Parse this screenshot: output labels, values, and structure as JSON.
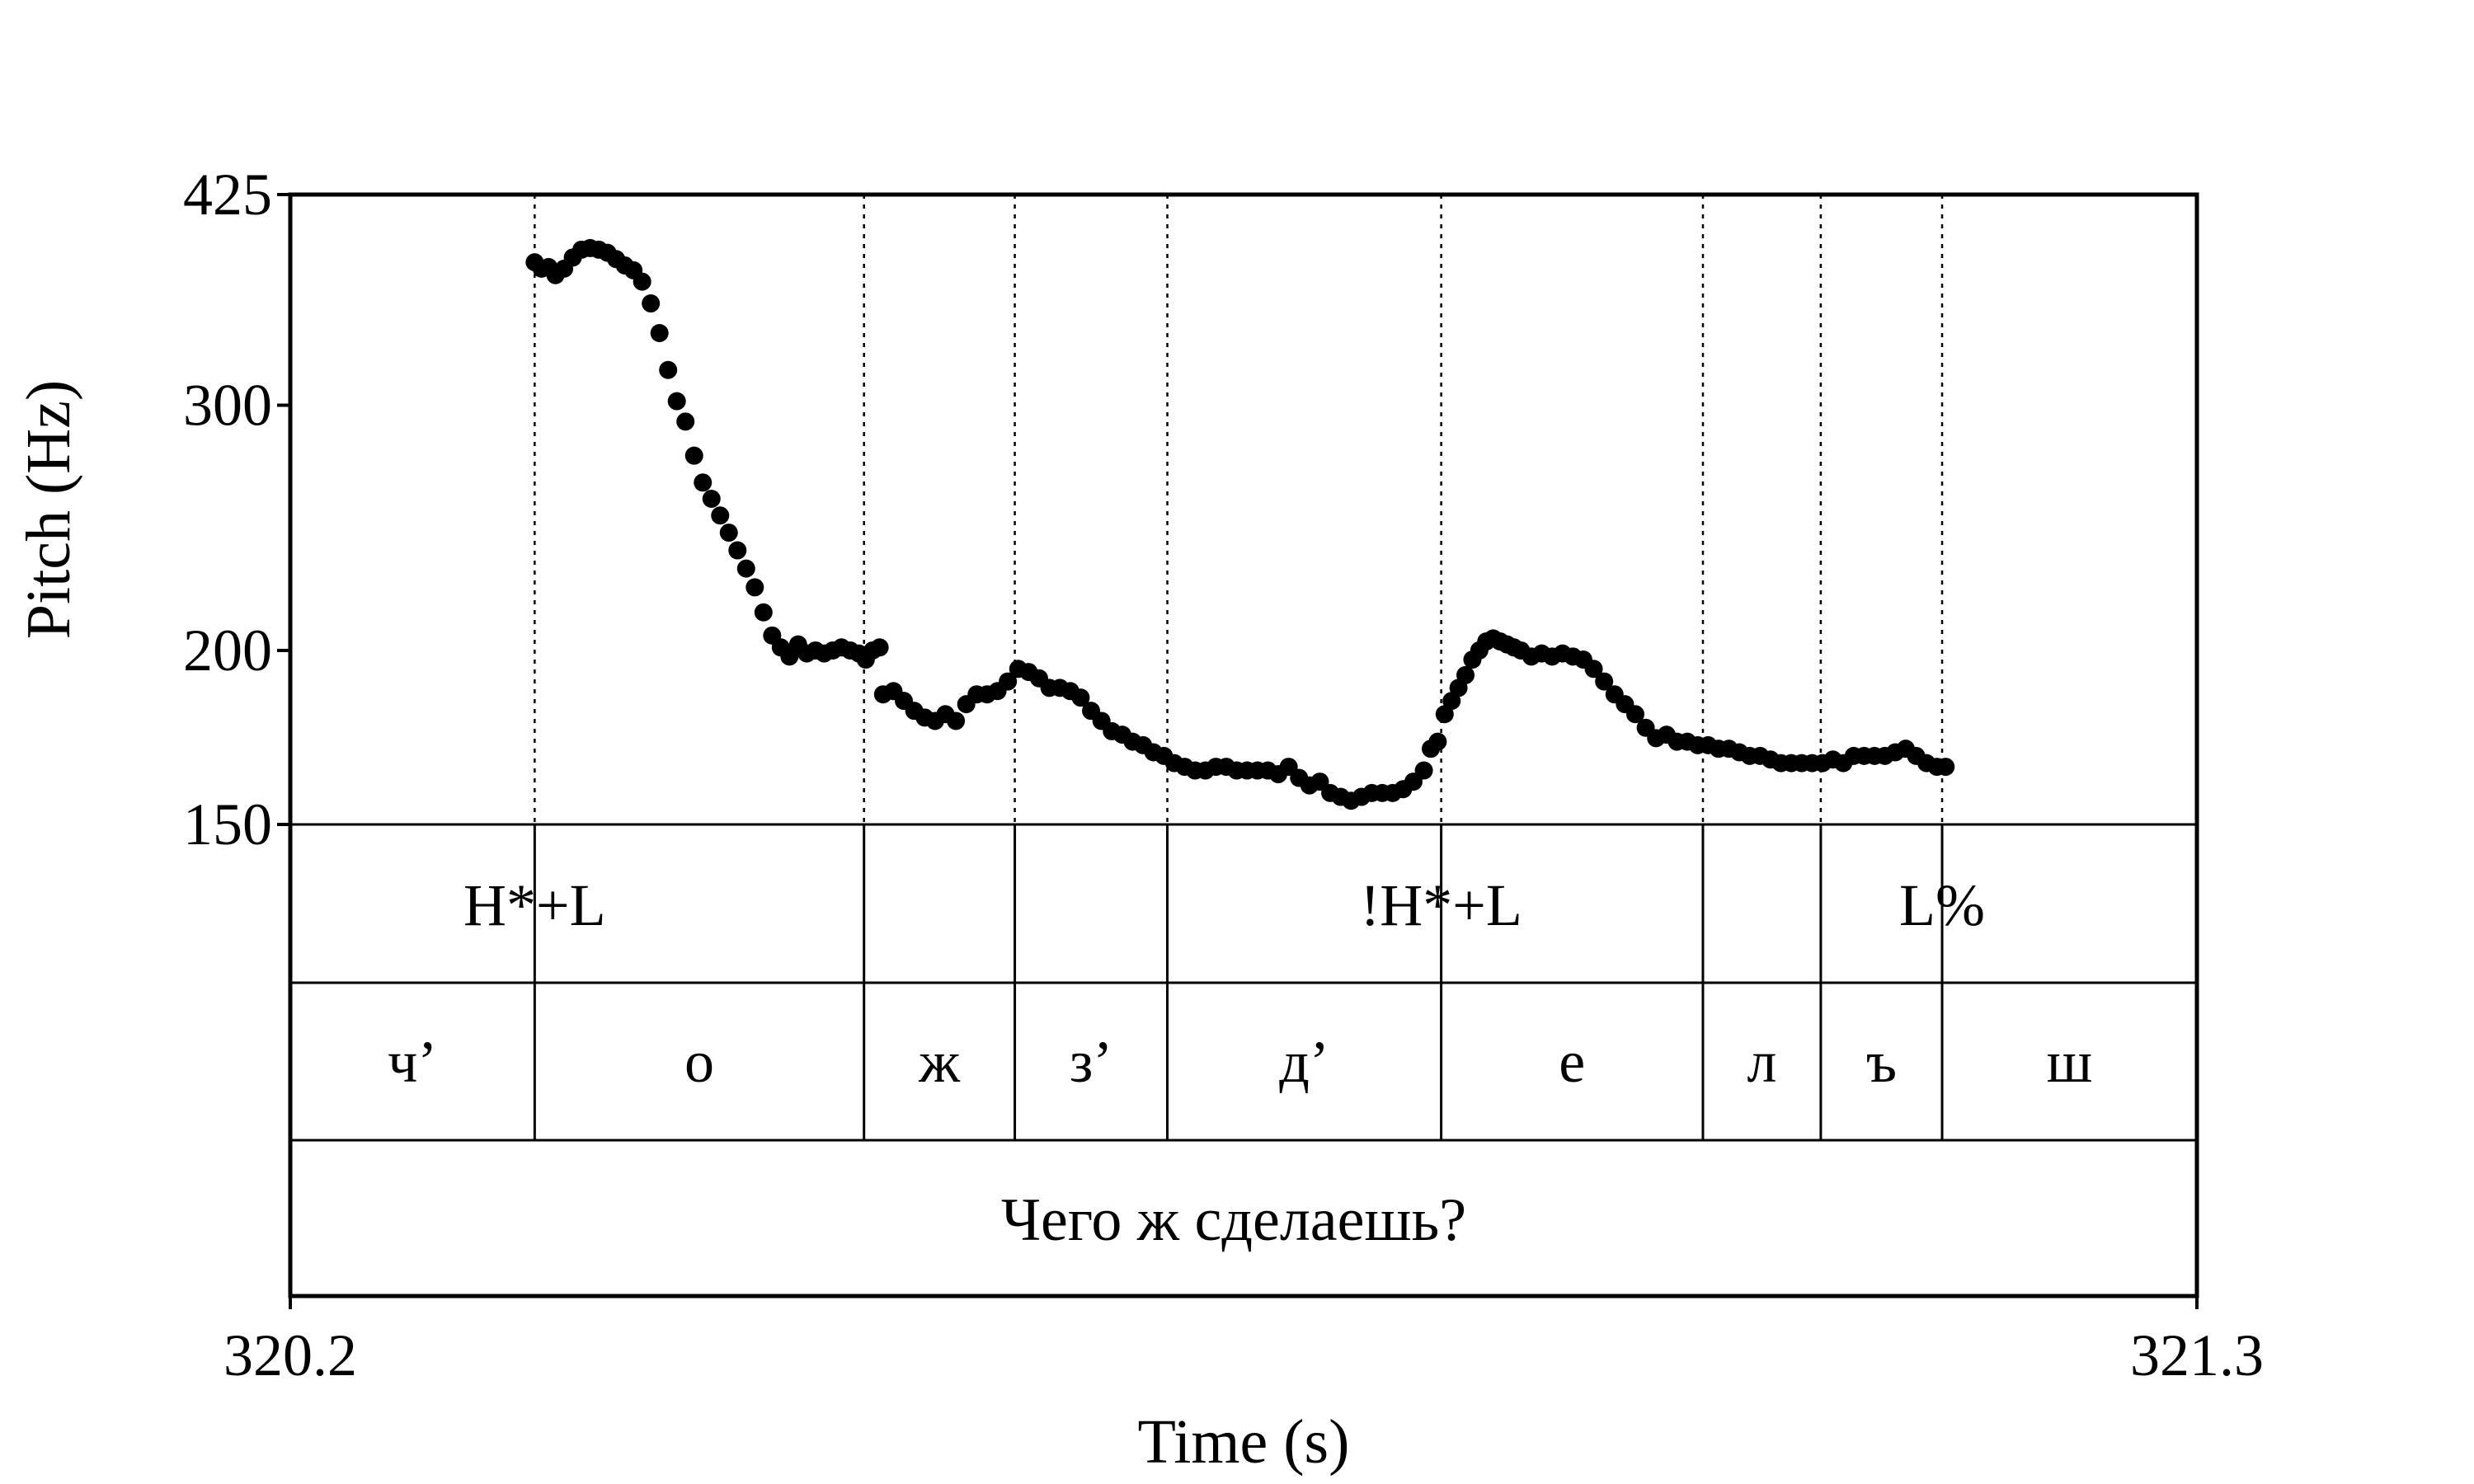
{
  "chart_data": {
    "type": "scatter",
    "title": "",
    "xlabel": "Time (s)",
    "ylabel": "Pitch (Hz)",
    "xlim": [
      320.2,
      321.3
    ],
    "ylim": [
      150,
      425
    ],
    "y_scale": "log",
    "x_ticks": [
      "320.2",
      "321.3"
    ],
    "y_ticks": [
      {
        "value": 425,
        "label": "425"
      },
      {
        "value": 300,
        "label": "300"
      },
      {
        "value": 200,
        "label": "200"
      },
      {
        "value": 150,
        "label": "150"
      }
    ],
    "grid": false,
    "boundaries": [
      320.341,
      320.531,
      320.618,
      320.706,
      320.864,
      321.015,
      321.083,
      321.153
    ],
    "tones": [
      {
        "time": 320.341,
        "label": "H*+L"
      },
      {
        "time": 320.864,
        "label": "!H*+L"
      },
      {
        "time": 321.153,
        "label": "L%"
      }
    ],
    "segments": [
      {
        "start": 320.2,
        "end": 320.341,
        "label": "ч’"
      },
      {
        "start": 320.341,
        "end": 320.531,
        "label": "о"
      },
      {
        "start": 320.531,
        "end": 320.618,
        "label": "ж"
      },
      {
        "start": 320.618,
        "end": 320.706,
        "label": "з’"
      },
      {
        "start": 320.706,
        "end": 320.864,
        "label": "д’"
      },
      {
        "start": 320.864,
        "end": 321.015,
        "label": "е"
      },
      {
        "start": 321.015,
        "end": 321.083,
        "label": "л"
      },
      {
        "start": 321.083,
        "end": 321.153,
        "label": "ъ"
      },
      {
        "start": 321.153,
        "end": 321.3,
        "label": "ш"
      }
    ],
    "sentence": "Чего ж сделаешь?",
    "pitch_contours": [
      {
        "t": [
          320.341,
          320.345,
          320.349,
          320.353,
          320.358,
          320.363,
          320.368,
          320.373,
          320.378,
          320.383,
          320.388,
          320.393,
          320.398,
          320.403,
          320.408,
          320.413,
          320.418,
          320.423,
          320.428,
          320.433,
          320.438,
          320.443,
          320.448,
          320.453,
          320.458,
          320.463,
          320.468,
          320.473,
          320.478,
          320.483,
          320.488,
          320.493,
          320.498,
          320.503,
          320.508,
          320.513,
          320.518,
          320.523,
          320.528,
          320.532,
          320.536,
          320.54
        ],
        "hz": [
          380,
          376,
          377,
          372,
          376,
          383,
          388,
          389,
          388,
          386,
          382,
          378,
          375,
          368,
          355,
          338,
          318,
          302,
          292,
          276,
          264,
          257,
          250,
          243,
          236,
          229,
          222,
          213,
          205,
          201,
          198,
          202,
          199,
          200,
          199,
          200,
          201,
          200,
          199,
          197,
          200,
          201
        ]
      },
      {
        "t": [
          320.542,
          320.548,
          320.554,
          320.56,
          320.566,
          320.572,
          320.578,
          320.584,
          320.59,
          320.596,
          320.602,
          320.608,
          320.614,
          320.62,
          320.626,
          320.632,
          320.638,
          320.644,
          320.65,
          320.656,
          320.662,
          320.668,
          320.674,
          320.68,
          320.686,
          320.692,
          320.698,
          320.704,
          320.71,
          320.716,
          320.722,
          320.728,
          320.734,
          320.74,
          320.746,
          320.752,
          320.758,
          320.764,
          320.77,
          320.776,
          320.782,
          320.788,
          320.794,
          320.8,
          320.806,
          320.812,
          320.818,
          320.824,
          320.83,
          320.836,
          320.842,
          320.848,
          320.854
        ],
        "hz": [
          186,
          187,
          184,
          181,
          179,
          178,
          180,
          178,
          183,
          186,
          186,
          187,
          190,
          194,
          193,
          191,
          188,
          188,
          187,
          185,
          181,
          178,
          175,
          174,
          172,
          171,
          169,
          168,
          166,
          165,
          164,
          164,
          165,
          165,
          164,
          164,
          164,
          164,
          163,
          165,
          162,
          160,
          161,
          158,
          157,
          156,
          157,
          158,
          158,
          158,
          159,
          161,
          164
        ]
      },
      {
        "t": [
          320.858,
          320.862,
          320.866,
          320.87,
          320.874,
          320.878,
          320.882,
          320.886,
          320.89,
          320.894,
          320.898,
          320.902,
          320.906,
          320.91,
          320.916,
          320.922,
          320.928,
          320.934,
          320.94,
          320.946,
          320.952,
          320.958,
          320.964,
          320.97,
          320.976,
          320.982,
          320.988,
          320.994,
          321.0,
          321.006,
          321.012,
          321.018,
          321.024,
          321.03,
          321.036,
          321.042,
          321.048,
          321.054,
          321.06,
          321.066,
          321.072,
          321.078,
          321.084,
          321.09,
          321.096,
          321.102,
          321.108,
          321.114,
          321.12,
          321.126,
          321.132,
          321.138,
          321.144,
          321.15,
          321.155
        ],
        "hz": [
          170,
          172,
          180,
          184,
          188,
          192,
          197,
          200,
          203,
          204,
          203,
          202,
          201,
          200,
          198,
          199,
          198,
          199,
          198,
          197,
          194,
          190,
          186,
          183,
          180,
          176,
          173,
          174,
          172,
          172,
          171,
          171,
          170,
          170,
          169,
          168,
          168,
          167,
          166,
          166,
          166,
          166,
          166,
          167,
          166,
          168,
          168,
          168,
          168,
          169,
          170,
          168,
          166,
          165,
          165
        ]
      }
    ]
  }
}
